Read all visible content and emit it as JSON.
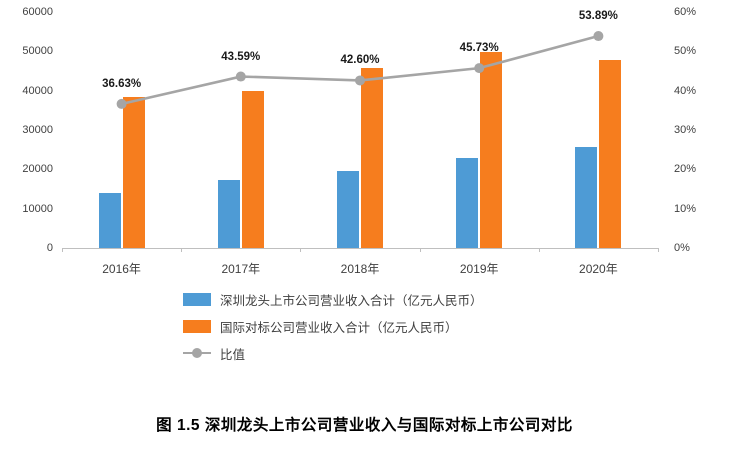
{
  "chart_data": {
    "type": "bar",
    "subtype": "grouped-bars-with-line",
    "title": "图 1.5 深圳龙头上市公司营业收入与国际对标上市公司对比",
    "categories": [
      "2016年",
      "2017年",
      "2018年",
      "2019年",
      "2020年"
    ],
    "series": [
      {
        "name": "深圳龙头上市公司营业收入合计（亿元人民币）",
        "type": "bar",
        "axis": "left",
        "color": "#4E9BD5",
        "values": [
          14000,
          17400,
          19500,
          22800,
          25700
        ]
      },
      {
        "name": "国际对标公司营业收入合计（亿元人民币）",
        "type": "bar",
        "axis": "left",
        "color": "#F67D1E",
        "values": [
          38300,
          40000,
          45800,
          49900,
          47700
        ]
      },
      {
        "name": "比值",
        "type": "line",
        "axis": "right",
        "color": "#A5A5A5",
        "values": [
          36.63,
          43.59,
          42.6,
          45.73,
          53.89
        ],
        "point_labels": [
          "36.63%",
          "43.59%",
          "42.60%",
          "45.73%",
          "53.89%"
        ]
      }
    ],
    "y_left_axis": {
      "min": 0,
      "max": 60000,
      "tick_labels": [
        "0",
        "10000",
        "20000",
        "30000",
        "40000",
        "50000",
        "60000"
      ]
    },
    "y_right_axis": {
      "min": 0,
      "max": 60,
      "tick_labels": [
        "0%",
        "10%",
        "20%",
        "30%",
        "40%",
        "50%",
        "60%"
      ]
    },
    "grid": false,
    "legend_position": "bottom-left-stacked"
  }
}
